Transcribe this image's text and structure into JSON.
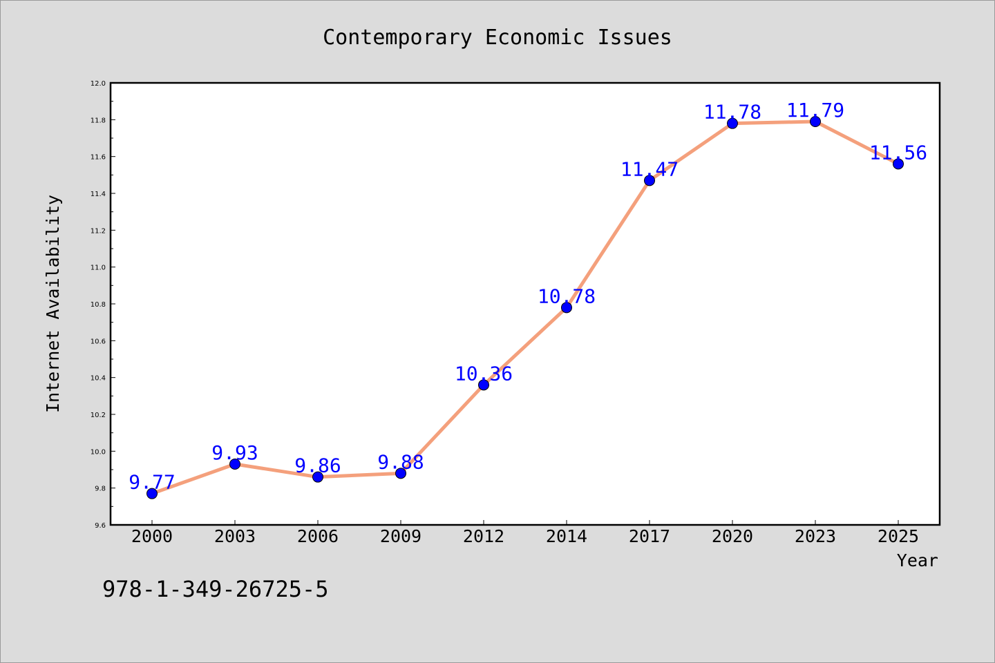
{
  "footer": {
    "isbn": "978-1-349-26725-5"
  },
  "colors": {
    "background": "#dcdcdc",
    "plot_area": "#ffffff",
    "line": "#f4a07c",
    "marker_fill": "#0000ff",
    "marker_edge": "#000000",
    "data_label": "#0000ff"
  },
  "chart_data": {
    "type": "line",
    "title": "Contemporary Economic Issues",
    "xlabel": "Year",
    "ylabel": "Internet Availability",
    "categories": [
      "2000",
      "2003",
      "2006",
      "2009",
      "2012",
      "2014",
      "2017",
      "2020",
      "2023",
      "2025"
    ],
    "series": [
      {
        "values": [
          9.77,
          9.93,
          9.86,
          9.88,
          10.36,
          10.78,
          11.47,
          11.78,
          11.79,
          11.56
        ]
      }
    ],
    "data_labels": [
      "9.77",
      "9.93",
      "9.86",
      "9.88",
      "10.36",
      "10.78",
      "11.47",
      "11.78",
      "11.79",
      "11.56"
    ],
    "ylim": [
      9.6,
      12.0
    ],
    "yticks": [
      "9.6",
      "9.8",
      "10.0",
      "10.2",
      "10.4",
      "10.6",
      "10.8",
      "11.0",
      "11.2",
      "11.4",
      "11.6",
      "11.8",
      "12.0"
    ],
    "grid": false,
    "legend": false,
    "marker": "circle"
  }
}
